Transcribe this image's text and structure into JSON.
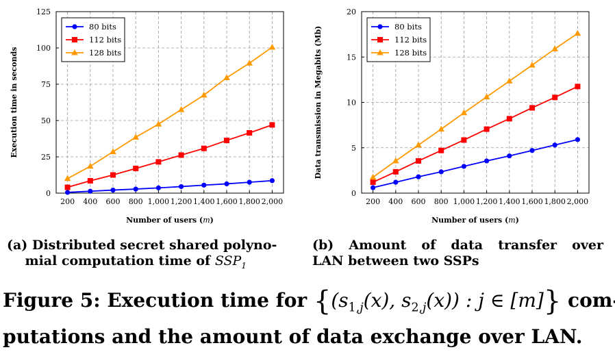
{
  "chart_data": [
    {
      "type": "line",
      "id": "a",
      "x": [
        200,
        400,
        600,
        800,
        1000,
        1200,
        1400,
        1600,
        1800,
        2000
      ],
      "x_tick_labels": [
        "200",
        "400",
        "600",
        "800",
        "1,000",
        "1,200",
        "1,400",
        "1,600",
        "1,800",
        "2,000"
      ],
      "xlabel": "Number of users (m)",
      "ylabel": "Execution time in seconds",
      "ylim": [
        0,
        125
      ],
      "y_ticks": [
        0,
        25,
        50,
        75,
        100,
        125
      ],
      "grid": true,
      "legend_position": "top-left",
      "series": [
        {
          "name": "80 bits",
          "color": "#0000ff",
          "marker": "circle",
          "values": [
            0.5,
            1.3,
            2.1,
            2.8,
            3.6,
            4.5,
            5.5,
            6.4,
            7.5,
            8.6
          ]
        },
        {
          "name": "112 bits",
          "color": "#ff0000",
          "marker": "square",
          "values": [
            4.0,
            8.5,
            12.5,
            17.0,
            21.5,
            26.2,
            30.8,
            36.3,
            41.5,
            47.0
          ]
        },
        {
          "name": "128 bits",
          "color": "#ff9900",
          "marker": "triangle",
          "values": [
            10.0,
            18.5,
            28.5,
            38.5,
            47.5,
            57.5,
            67.5,
            79.5,
            89.5,
            100.5
          ]
        }
      ]
    },
    {
      "type": "line",
      "id": "b",
      "x": [
        200,
        400,
        600,
        800,
        1000,
        1200,
        1400,
        1600,
        1800,
        2000
      ],
      "x_tick_labels": [
        "200",
        "400",
        "600",
        "800",
        "1,000",
        "1,200",
        "1,400",
        "1,600",
        "1,800",
        "2,000"
      ],
      "xlabel": "Number of users (m)",
      "ylabel": "Data transmission in Megabits (Mb)",
      "ylim": [
        0,
        20
      ],
      "y_ticks": [
        0,
        5,
        10,
        15,
        20
      ],
      "grid": true,
      "legend_position": "top-left",
      "series": [
        {
          "name": "80 bits",
          "color": "#0000ff",
          "marker": "circle",
          "values": [
            0.6,
            1.2,
            1.8,
            2.35,
            2.95,
            3.55,
            4.1,
            4.7,
            5.3,
            5.9
          ]
        },
        {
          "name": "112 bits",
          "color": "#ff0000",
          "marker": "square",
          "values": [
            1.2,
            2.35,
            3.55,
            4.7,
            5.85,
            7.05,
            8.2,
            9.4,
            10.55,
            11.75
          ]
        },
        {
          "name": "128 bits",
          "color": "#ff9900",
          "marker": "triangle",
          "values": [
            1.75,
            3.55,
            5.3,
            7.05,
            8.85,
            10.6,
            12.35,
            14.1,
            15.9,
            17.6
          ]
        }
      ]
    }
  ],
  "captions": {
    "a_prefix": "(a) Distributed secret shared polyno-",
    "a_line2": "mial computation time of ",
    "a_math": "SSP",
    "a_sub": "1",
    "b_line1": "(b) Amount of data transfer over",
    "b_line2": "LAN between two SSPs"
  },
  "figure_caption": {
    "label": "Figure 5: Execution time for ",
    "math_open": "{",
    "math_body_1": "(s",
    "math_sub_1": "1,",
    "math_sub_1j": "j",
    "math_body_2": "(x), s",
    "math_sub_2": "2,",
    "math_sub_2j": "j",
    "math_body_3": "(x)) : j ∈ [m]",
    "math_close": "}",
    "tail_1": " com-",
    "line2": "putations and the amount of data exchange over LAN."
  }
}
